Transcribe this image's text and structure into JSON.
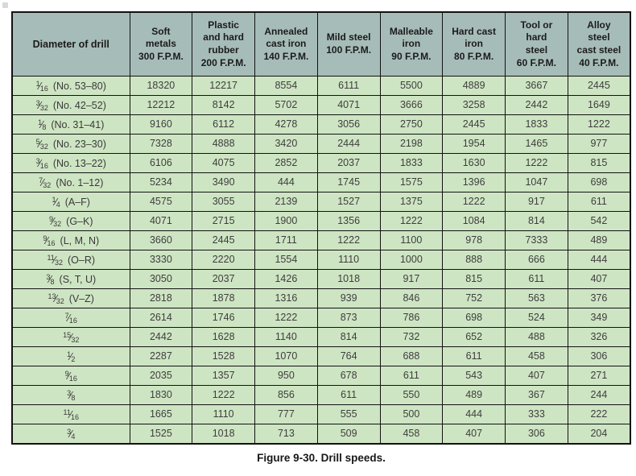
{
  "figure": {
    "caption": "Figure 9-30. Drill speeds."
  },
  "colors": {
    "header_bg": "#a6bcb8",
    "row_bg": "#cee5c3",
    "border": "#121212"
  },
  "table": {
    "columns": [
      "Diameter of drill",
      "Soft\nmetals\n300 F.P.M.",
      "Plastic\nand hard\nrubber\n200 F.P.M.",
      "Annealed\ncast iron\n140 F.P.M.",
      "Mild steel\n100 F.P.M.",
      "Malleable\niron\n90 F.P.M.",
      "Hard cast\niron\n80 F.P.M.",
      "Tool or\nhard\nsteel\n60 F.P.M.",
      "Alloy\nsteel\ncast steel\n40 F.P.M."
    ],
    "rows": [
      {
        "diameter": {
          "num": "1",
          "den": "16",
          "suffix": "(No. 53–80)"
        },
        "values": [
          18320,
          12217,
          8554,
          6111,
          5500,
          4889,
          3667,
          2445
        ]
      },
      {
        "diameter": {
          "num": "3",
          "den": "32",
          "suffix": "(No. 42–52)"
        },
        "values": [
          12212,
          8142,
          5702,
          4071,
          3666,
          3258,
          2442,
          1649
        ]
      },
      {
        "diameter": {
          "num": "1",
          "den": "8",
          "suffix": "(No. 31–41)"
        },
        "values": [
          9160,
          6112,
          4278,
          3056,
          2750,
          2445,
          1833,
          1222
        ]
      },
      {
        "diameter": {
          "num": "5",
          "den": "32",
          "suffix": "(No. 23–30)"
        },
        "values": [
          7328,
          4888,
          3420,
          2444,
          2198,
          1954,
          1465,
          977
        ]
      },
      {
        "diameter": {
          "num": "3",
          "den": "16",
          "suffix": "(No. 13–22)"
        },
        "values": [
          6106,
          4075,
          2852,
          2037,
          1833,
          1630,
          1222,
          815
        ]
      },
      {
        "diameter": {
          "num": "7",
          "den": "32",
          "suffix": "(No. 1–12)"
        },
        "values": [
          5234,
          3490,
          444,
          1745,
          1575,
          1396,
          1047,
          698
        ]
      },
      {
        "diameter": {
          "num": "1",
          "den": "4",
          "suffix": "(A–F)"
        },
        "values": [
          4575,
          3055,
          2139,
          1527,
          1375,
          1222,
          917,
          611
        ]
      },
      {
        "diameter": {
          "num": "9",
          "den": "32",
          "suffix": "(G–K)"
        },
        "values": [
          4071,
          2715,
          1900,
          1356,
          1222,
          1084,
          814,
          542
        ]
      },
      {
        "diameter": {
          "num": "9",
          "den": "16",
          "suffix": "(L, M, N)"
        },
        "values": [
          3660,
          2445,
          1711,
          1222,
          1100,
          978,
          7333,
          489
        ]
      },
      {
        "diameter": {
          "num": "11",
          "den": "32",
          "suffix": "(O–R)"
        },
        "values": [
          3330,
          2220,
          1554,
          1110,
          1000,
          888,
          666,
          444
        ]
      },
      {
        "diameter": {
          "num": "3",
          "den": "8",
          "suffix": "(S, T, U)"
        },
        "values": [
          3050,
          2037,
          1426,
          1018,
          917,
          815,
          611,
          407
        ]
      },
      {
        "diameter": {
          "num": "13",
          "den": "32",
          "suffix": "(V–Z)"
        },
        "values": [
          2818,
          1878,
          1316,
          939,
          846,
          752,
          563,
          376
        ]
      },
      {
        "diameter": {
          "num": "7",
          "den": "16",
          "suffix": ""
        },
        "values": [
          2614,
          1746,
          1222,
          873,
          786,
          698,
          524,
          349
        ]
      },
      {
        "diameter": {
          "num": "15",
          "den": "32",
          "suffix": ""
        },
        "values": [
          2442,
          1628,
          1140,
          814,
          732,
          652,
          488,
          326
        ]
      },
      {
        "diameter": {
          "num": "1",
          "den": "2",
          "suffix": ""
        },
        "values": [
          2287,
          1528,
          1070,
          764,
          688,
          611,
          458,
          306
        ]
      },
      {
        "diameter": {
          "num": "9",
          "den": "16",
          "suffix": ""
        },
        "values": [
          2035,
          1357,
          950,
          678,
          611,
          543,
          407,
          271
        ]
      },
      {
        "diameter": {
          "num": "3",
          "den": "8",
          "suffix": ""
        },
        "values": [
          1830,
          1222,
          856,
          611,
          550,
          489,
          367,
          244
        ]
      },
      {
        "diameter": {
          "num": "11",
          "den": "16",
          "suffix": ""
        },
        "values": [
          1665,
          1110,
          777,
          555,
          500,
          444,
          333,
          222
        ]
      },
      {
        "diameter": {
          "num": "3",
          "den": "4",
          "suffix": ""
        },
        "values": [
          1525,
          1018,
          713,
          509,
          458,
          407,
          306,
          204
        ]
      }
    ]
  }
}
